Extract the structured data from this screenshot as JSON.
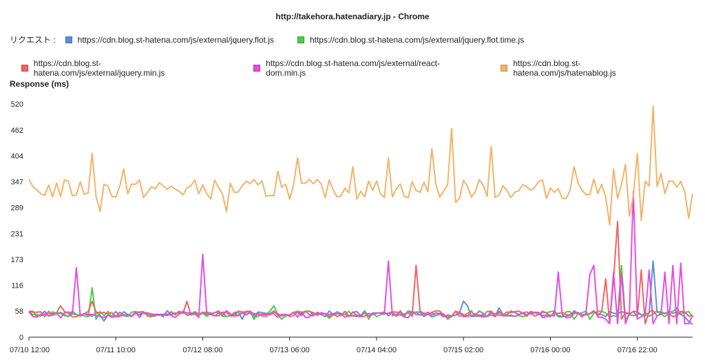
{
  "window": {
    "title": "http://takehora.hatenadiary.jp - Chrome"
  },
  "legend": {
    "label": "リクエスト :"
  },
  "chart_data": {
    "type": "line",
    "title": "http://takehora.hatenadiary.jp - Chrome",
    "ylabel": "Response (ms)",
    "xlabel": "",
    "ylim": [
      0,
      520
    ],
    "yticks": [
      0,
      58,
      116,
      173,
      231,
      289,
      347,
      404,
      462,
      520
    ],
    "xticks": [
      {
        "index": 0,
        "label": "07/10 12:00"
      },
      {
        "index": 22,
        "label": "07/11 10:00"
      },
      {
        "index": 44,
        "label": "07/12 08:00"
      },
      {
        "index": 66,
        "label": "07/13 06:00"
      },
      {
        "index": 88,
        "label": "07/14 04:00"
      },
      {
        "index": 110,
        "label": "07/15 02:00"
      },
      {
        "index": 132,
        "label": "07/16 00:00"
      },
      {
        "index": 154,
        "label": "07/16 22:00"
      }
    ],
    "x_points": 169,
    "series": [
      {
        "name": "https://cdn.blog.st-hatena.com/js/external/jquery.flot.js",
        "color": "#5b8fd6",
        "base": 52,
        "spikes": {
          "19": 36,
          "54": 40,
          "57": 40,
          "110": 80,
          "111": 70,
          "119": 65,
          "158": 170,
          "167": 35,
          "168": 28
        }
      },
      {
        "name": "https://cdn.blog.st-hatena.com/js/external/jquery.flot.time.js",
        "color": "#4ccc44",
        "base": 52,
        "spikes": {
          "16": 110,
          "17": 40,
          "62": 70,
          "64": 40,
          "76": 42,
          "86": 40,
          "106": 40,
          "138": 40,
          "142": 40,
          "150": 160,
          "151": 40,
          "164": 65,
          "168": 45
        }
      },
      {
        "name": "https://cdn.blog.st-hatena.com/js/external/jquery.min.js",
        "color": "#ef6461",
        "base": 52,
        "spikes": {
          "8": 70,
          "16": 80,
          "40": 80,
          "98": 160,
          "146": 130,
          "147": 30,
          "148": 130,
          "149": 258,
          "150": 40,
          "155": 150,
          "156": 30
        }
      },
      {
        "name": "https://cdn.blog.st-hatena.com/js/external/react-dom.min.js",
        "color": "#e64ce6",
        "base": 50,
        "spikes": {
          "12": 155,
          "44": 185,
          "91": 170,
          "134": 145,
          "135": 50,
          "142": 140,
          "143": 160,
          "146": 40,
          "147": 30,
          "148": 145,
          "149": 30,
          "150": 140,
          "151": 30,
          "153": 325,
          "154": 40,
          "157": 150,
          "158": 30,
          "161": 145,
          "162": 30,
          "163": 160,
          "164": 30,
          "165": 165,
          "166": 30,
          "167": 30
        }
      },
      {
        "name": "https://cdn.blog.st-hatena.com/js/hatenablog.js",
        "color": "#f5b266",
        "base": 330,
        "spikes": {
          "16": 410,
          "18": 280,
          "24": 375,
          "50": 280,
          "63": 370,
          "68": 400,
          "82": 380,
          "91": 400,
          "102": 420,
          "107": 465,
          "108": 300,
          "117": 425,
          "138": 380,
          "147": 250,
          "148": 375,
          "151": 385,
          "152": 270,
          "154": 410,
          "155": 260,
          "158": 515,
          "160": 365,
          "167": 265
        }
      }
    ]
  }
}
